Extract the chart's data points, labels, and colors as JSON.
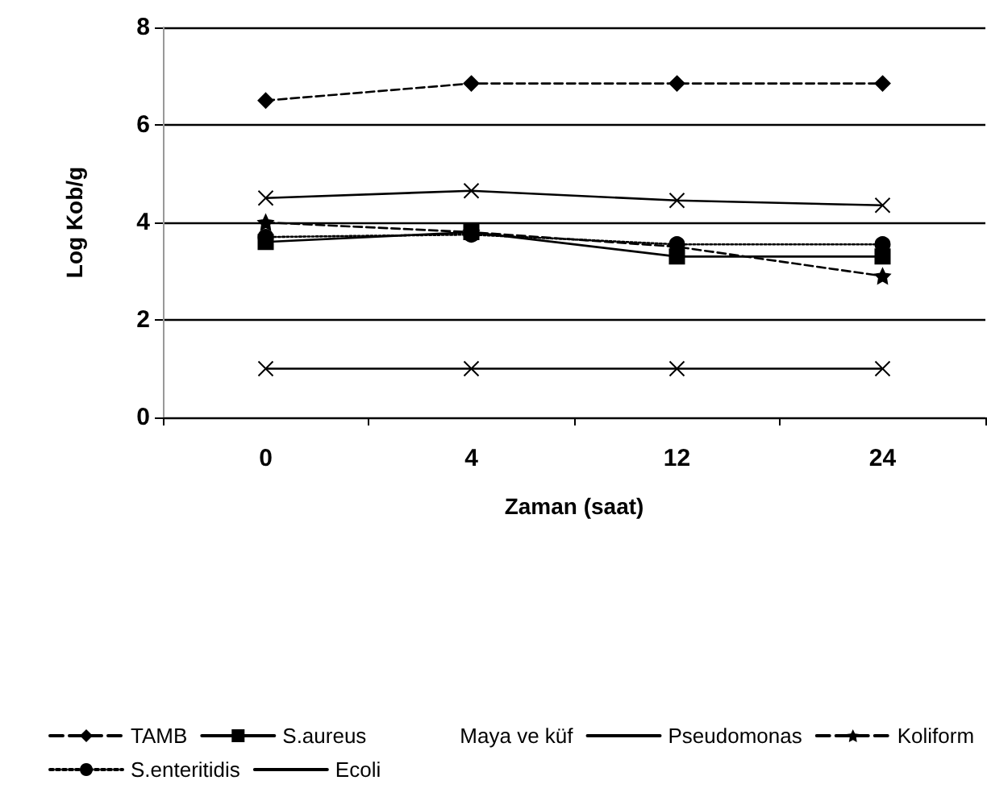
{
  "chart_data": {
    "type": "line",
    "xlabel": "Zaman (saat)",
    "ylabel": "Log Kob/g",
    "categories": [
      "0",
      "4",
      "12",
      "24"
    ],
    "ylim": [
      0,
      8
    ],
    "yticks": [
      0,
      2,
      4,
      6,
      8
    ],
    "grid": "y",
    "legend": "bottom",
    "series": [
      {
        "name": "TAMB",
        "color": "#000000",
        "marker": "diamond",
        "line_style": "dashed",
        "values": [
          6.5,
          6.85,
          6.85,
          6.85
        ]
      },
      {
        "name": "S.aureus",
        "color": "#000000",
        "marker": "square",
        "line_style": "solid",
        "values": [
          3.6,
          3.8,
          3.3,
          3.3
        ]
      },
      {
        "name": "Maya ve küf",
        "color": "#000000",
        "marker": "none",
        "line_style": "none",
        "values": [
          null,
          null,
          null,
          null
        ]
      },
      {
        "name": "Pseudomonas",
        "color": "#000000",
        "marker": "cross",
        "line_style": "solid",
        "values": [
          4.5,
          4.65,
          4.45,
          4.35
        ]
      },
      {
        "name": "Koliform",
        "color": "#000000",
        "marker": "star",
        "line_style": "dashed",
        "values": [
          4.0,
          3.8,
          3.5,
          2.9
        ]
      },
      {
        "name": "S.enteritidis",
        "color": "#000000",
        "marker": "circle",
        "line_style": "dotted",
        "values": [
          3.7,
          3.75,
          3.55,
          3.55
        ]
      },
      {
        "name": "Ecoli",
        "color": "#000000",
        "marker": "cross",
        "line_style": "solid",
        "values": [
          1,
          1,
          1,
          1
        ]
      }
    ]
  }
}
